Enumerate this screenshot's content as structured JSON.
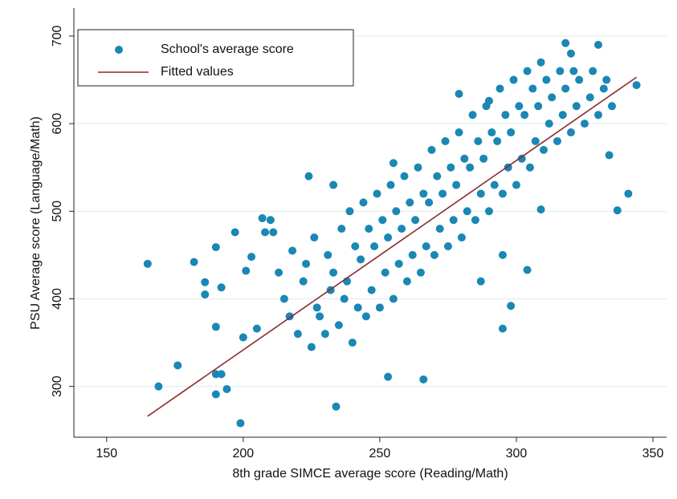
{
  "chart_data": {
    "type": "scatter",
    "x_label": "8th grade SIMCE average score (Reading/Math)",
    "y_label": "PSU Average score (Language/Math)",
    "xlim": [
      138,
      355
    ],
    "xticks": [
      150,
      200,
      250,
      300,
      350
    ],
    "ylim": [
      242,
      732
    ],
    "yticks": [
      300,
      400,
      500,
      600,
      700
    ],
    "grid": true,
    "legend": "top-left",
    "series": [
      {
        "name": "School's average score",
        "color": "#1a87b4",
        "marker": "point",
        "x": [
          165,
          169,
          176,
          182,
          186,
          186,
          190,
          190,
          190,
          190,
          192,
          192,
          194,
          197,
          199,
          200,
          201,
          203,
          205,
          207,
          208,
          210,
          211,
          234,
          253,
          266,
          224,
          233,
          255,
          279,
          290,
          318,
          330,
          320,
          341,
          337,
          344,
          304,
          295,
          298,
          309,
          334,
          287,
          295,
          215,
          217,
          213,
          220,
          222,
          218,
          225,
          227,
          223,
          226,
          230,
          232,
          228,
          231,
          235,
          237,
          233,
          236,
          240,
          242,
          238,
          241,
          239,
          245,
          247,
          243,
          246,
          244,
          250,
          252,
          248,
          251,
          249,
          255,
          257,
          253,
          256,
          254,
          260,
          262,
          258,
          261,
          259,
          265,
          267,
          263,
          266,
          264,
          270,
          272,
          268,
          271,
          269,
          275,
          277,
          273,
          276,
          274,
          280,
          282,
          278,
          281,
          279,
          285,
          287,
          283,
          286,
          284,
          290,
          292,
          288,
          291,
          289,
          295,
          297,
          293,
          296,
          294,
          300,
          302,
          298,
          301,
          299,
          305,
          307,
          303,
          306,
          304,
          310,
          312,
          308,
          311,
          309,
          315,
          317,
          313,
          316,
          320,
          322,
          318,
          321,
          325,
          327,
          323,
          330,
          332,
          328,
          335,
          333
        ],
        "values": [
          440,
          300,
          324,
          442,
          419,
          405,
          459,
          368,
          314,
          291,
          314,
          413,
          297,
          476,
          258,
          356,
          432,
          448,
          366,
          492,
          476,
          490,
          476,
          277,
          311,
          308,
          540,
          530,
          555,
          634,
          626,
          692,
          690,
          680,
          520,
          501,
          644,
          433,
          366,
          392,
          502,
          564,
          420,
          450,
          400,
          380,
          430,
          360,
          420,
          455,
          345,
          390,
          440,
          470,
          360,
          410,
          380,
          450,
          370,
          400,
          430,
          480,
          350,
          390,
          420,
          460,
          500,
          380,
          410,
          445,
          480,
          510,
          390,
          430,
          460,
          490,
          520,
          400,
          440,
          470,
          500,
          530,
          420,
          450,
          480,
          510,
          540,
          430,
          460,
          490,
          520,
          550,
          450,
          480,
          510,
          540,
          570,
          460,
          490,
          520,
          550,
          580,
          470,
          500,
          530,
          560,
          590,
          490,
          520,
          550,
          580,
          610,
          500,
          530,
          560,
          590,
          620,
          520,
          550,
          580,
          610,
          640,
          530,
          560,
          590,
          620,
          650,
          550,
          580,
          610,
          640,
          660,
          570,
          600,
          620,
          650,
          670,
          580,
          610,
          630,
          660,
          590,
          620,
          640,
          660,
          600,
          630,
          650,
          610,
          640,
          660,
          620,
          650
        ]
      },
      {
        "name": "Fitted values",
        "color": "#8c2a2c",
        "marker": "line",
        "x": [
          165,
          344
        ],
        "values": [
          266,
          653
        ]
      }
    ]
  }
}
